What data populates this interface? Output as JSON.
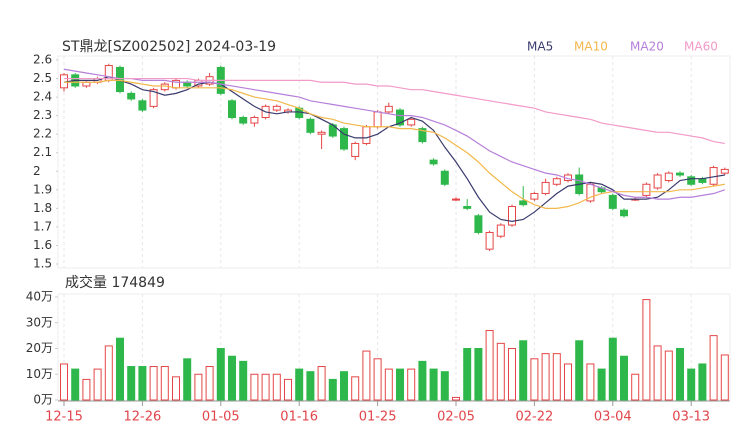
{
  "chart_data": [
    {
      "type": "candlestick",
      "title": "ST鼎龙[SZ002502] 2024-03-19",
      "open": [
        2.45,
        2.52,
        2.46,
        2.48,
        2.49,
        2.56,
        2.42,
        2.38,
        2.35,
        2.44,
        2.45,
        2.48,
        2.46,
        2.47,
        2.56,
        2.38,
        2.29,
        2.26,
        2.29,
        2.33,
        2.32,
        2.34,
        2.28,
        2.2,
        2.25,
        2.23,
        2.08,
        2.15,
        2.24,
        2.32,
        2.33,
        2.25,
        2.23,
        2.06,
        2.0,
        1.85,
        1.81,
        1.76,
        1.58,
        1.65,
        1.71,
        1.84,
        1.85,
        1.88,
        1.93,
        1.95,
        1.98,
        1.84,
        1.91,
        1.87,
        1.79,
        1.85,
        1.87,
        1.91,
        1.95,
        1.99,
        1.97,
        1.96,
        1.93,
        1.99
      ],
      "high": [
        2.53,
        2.53,
        2.49,
        2.51,
        2.58,
        2.57,
        2.43,
        2.39,
        2.45,
        2.48,
        2.5,
        2.49,
        2.5,
        2.53,
        2.57,
        2.39,
        2.3,
        2.3,
        2.36,
        2.36,
        2.34,
        2.35,
        2.29,
        2.22,
        2.26,
        2.24,
        2.16,
        2.25,
        2.33,
        2.37,
        2.34,
        2.29,
        2.24,
        2.07,
        2.01,
        1.86,
        1.85,
        1.77,
        1.68,
        1.72,
        1.82,
        1.92,
        1.89,
        1.96,
        1.97,
        1.99,
        2.02,
        1.94,
        1.92,
        1.88,
        1.8,
        1.86,
        1.94,
        1.99,
        2.0,
        2.0,
        1.98,
        1.97,
        2.03,
        2.02
      ],
      "low": [
        2.43,
        2.45,
        2.45,
        2.47,
        2.48,
        2.42,
        2.38,
        2.32,
        2.34,
        2.43,
        2.44,
        2.45,
        2.45,
        2.46,
        2.41,
        2.28,
        2.25,
        2.24,
        2.28,
        2.32,
        2.31,
        2.28,
        2.2,
        2.12,
        2.18,
        2.11,
        2.06,
        2.14,
        2.23,
        2.31,
        2.24,
        2.24,
        2.15,
        2.03,
        1.92,
        1.84,
        1.79,
        1.66,
        1.57,
        1.64,
        1.7,
        1.81,
        1.84,
        1.87,
        1.92,
        1.94,
        1.87,
        1.83,
        1.88,
        1.79,
        1.75,
        1.84,
        1.86,
        1.9,
        1.94,
        1.97,
        1.92,
        1.93,
        1.92,
        1.98
      ],
      "close": [
        2.52,
        2.46,
        2.48,
        2.5,
        2.57,
        2.43,
        2.39,
        2.33,
        2.44,
        2.47,
        2.49,
        2.46,
        2.49,
        2.51,
        2.42,
        2.29,
        2.26,
        2.29,
        2.35,
        2.35,
        2.33,
        2.29,
        2.21,
        2.21,
        2.19,
        2.12,
        2.15,
        2.24,
        2.32,
        2.35,
        2.25,
        2.28,
        2.16,
        2.04,
        1.93,
        1.85,
        1.8,
        1.67,
        1.67,
        1.71,
        1.81,
        1.82,
        1.88,
        1.94,
        1.96,
        1.98,
        1.88,
        1.93,
        1.89,
        1.8,
        1.76,
        1.85,
        1.93,
        1.98,
        1.99,
        1.98,
        1.93,
        1.94,
        2.02,
        2.01
      ],
      "up_color": "#e64545",
      "down_color": "#2eb84b",
      "series": [
        {
          "name": "MA5",
          "color": "#3a3a6e",
          "values": [
            2.48,
            2.49,
            2.49,
            2.49,
            2.51,
            2.49,
            2.47,
            2.44,
            2.43,
            2.41,
            2.42,
            2.44,
            2.47,
            2.48,
            2.47,
            2.43,
            2.39,
            2.35,
            2.32,
            2.31,
            2.32,
            2.32,
            2.31,
            2.28,
            2.25,
            2.2,
            2.18,
            2.18,
            2.2,
            2.24,
            2.26,
            2.29,
            2.27,
            2.22,
            2.13,
            2.05,
            1.96,
            1.86,
            1.78,
            1.74,
            1.73,
            1.74,
            1.78,
            1.83,
            1.88,
            1.92,
            1.93,
            1.94,
            1.93,
            1.9,
            1.85,
            1.85,
            1.85,
            1.86,
            1.9,
            1.95,
            1.96,
            1.96,
            1.97,
            1.98
          ]
        },
        {
          "name": "MA10",
          "color": "#f2b84b",
          "values": [
            2.48,
            2.48,
            2.48,
            2.48,
            2.49,
            2.49,
            2.48,
            2.47,
            2.46,
            2.46,
            2.45,
            2.45,
            2.45,
            2.45,
            2.45,
            2.44,
            2.42,
            2.4,
            2.39,
            2.38,
            2.36,
            2.34,
            2.31,
            2.29,
            2.28,
            2.26,
            2.25,
            2.24,
            2.24,
            2.24,
            2.23,
            2.23,
            2.22,
            2.21,
            2.18,
            2.14,
            2.1,
            2.05,
            1.99,
            1.94,
            1.89,
            1.85,
            1.82,
            1.8,
            1.8,
            1.81,
            1.83,
            1.86,
            1.88,
            1.89,
            1.89,
            1.89,
            1.89,
            1.89,
            1.89,
            1.9,
            1.9,
            1.91,
            1.92,
            1.93
          ]
        },
        {
          "name": "MA20",
          "color": "#b67fd9",
          "values": [
            2.55,
            2.54,
            2.53,
            2.52,
            2.51,
            2.5,
            2.5,
            2.49,
            2.49,
            2.49,
            2.48,
            2.48,
            2.48,
            2.48,
            2.47,
            2.46,
            2.45,
            2.44,
            2.43,
            2.42,
            2.41,
            2.4,
            2.38,
            2.37,
            2.36,
            2.35,
            2.34,
            2.33,
            2.32,
            2.31,
            2.3,
            2.3,
            2.29,
            2.27,
            2.25,
            2.22,
            2.19,
            2.15,
            2.11,
            2.08,
            2.05,
            2.03,
            2.01,
            1.99,
            1.98,
            1.96,
            1.95,
            1.93,
            1.91,
            1.89,
            1.87,
            1.86,
            1.86,
            1.85,
            1.85,
            1.86,
            1.86,
            1.87,
            1.88,
            1.9
          ]
        },
        {
          "name": "MA60",
          "color": "#f29ac8",
          "values": [
            2.5,
            2.5,
            2.5,
            2.5,
            2.5,
            2.5,
            2.5,
            2.5,
            2.5,
            2.5,
            2.5,
            2.5,
            2.49,
            2.49,
            2.49,
            2.49,
            2.49,
            2.49,
            2.49,
            2.49,
            2.49,
            2.49,
            2.49,
            2.48,
            2.48,
            2.48,
            2.47,
            2.47,
            2.46,
            2.46,
            2.45,
            2.44,
            2.44,
            2.43,
            2.42,
            2.41,
            2.4,
            2.39,
            2.38,
            2.37,
            2.36,
            2.35,
            2.34,
            2.32,
            2.31,
            2.3,
            2.29,
            2.28,
            2.26,
            2.25,
            2.24,
            2.23,
            2.22,
            2.21,
            2.21,
            2.2,
            2.19,
            2.18,
            2.16,
            2.15
          ]
        }
      ],
      "ylim": [
        1.5,
        2.6
      ],
      "yticks": [
        1.5,
        1.6,
        1.7,
        1.8,
        1.9,
        2,
        2.1,
        2.2,
        2.3,
        2.4,
        2.5,
        2.6
      ]
    },
    {
      "type": "bar",
      "title": "成交量 174849",
      "categories": [
        "12-15",
        null,
        null,
        null,
        null,
        null,
        null,
        "12-26",
        null,
        null,
        null,
        null,
        null,
        null,
        "01-05",
        null,
        null,
        null,
        null,
        null,
        null,
        "01-16",
        null,
        null,
        null,
        null,
        null,
        null,
        "01-25",
        null,
        null,
        null,
        null,
        null,
        null,
        "02-05",
        null,
        null,
        null,
        null,
        null,
        null,
        "02-22",
        null,
        null,
        null,
        null,
        null,
        null,
        "03-04",
        null,
        null,
        null,
        null,
        null,
        null,
        "03-13",
        null,
        null,
        null
      ],
      "values": [
        14,
        12,
        8,
        12,
        21,
        24,
        13,
        13,
        13,
        13,
        9,
        16,
        10,
        13,
        20,
        17,
        15,
        10,
        10,
        10,
        8,
        12,
        11,
        13,
        8,
        11,
        9,
        19,
        16,
        12,
        12,
        12,
        15,
        12,
        11,
        1,
        20,
        20,
        27,
        22,
        20,
        23,
        16,
        18,
        18,
        14,
        23,
        14,
        12,
        24,
        17,
        10,
        39,
        21,
        19,
        20,
        12,
        14,
        25,
        17.4849
      ],
      "ylim": [
        0,
        40
      ],
      "yticks": [
        {
          "value": 0,
          "label": "0万"
        },
        {
          "value": 10,
          "label": "10万"
        },
        {
          "value": 20,
          "label": "20万"
        },
        {
          "value": 30,
          "label": "30万"
        },
        {
          "value": 40,
          "label": "40万"
        }
      ]
    }
  ]
}
